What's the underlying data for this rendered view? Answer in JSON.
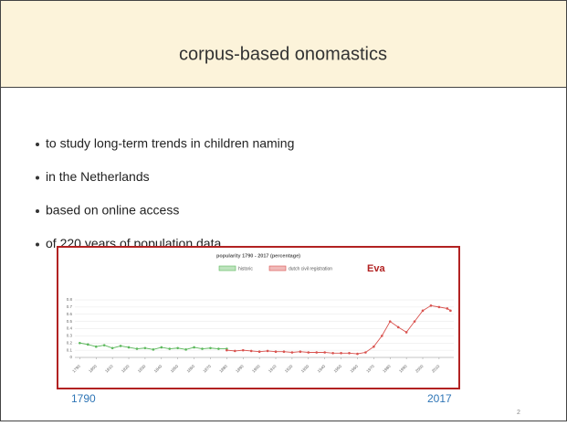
{
  "title": "corpus-based onomastics",
  "bullets": [
    "to study long-term trends in children naming",
    "in the Netherlands",
    "based on online access",
    "of 220 years of population data"
  ],
  "chart_data": {
    "type": "line",
    "title": "popularity 1790 - 2017 (percentage)",
    "annotation": "Eva",
    "series": [
      {
        "name": "historic",
        "color": "#5cb85c",
        "x": [
          1790,
          1795,
          1800,
          1805,
          1810,
          1815,
          1820,
          1825,
          1830,
          1835,
          1840,
          1845,
          1850,
          1855,
          1860,
          1865,
          1870,
          1875,
          1880
        ],
        "values": [
          0.2,
          0.18,
          0.15,
          0.17,
          0.13,
          0.16,
          0.14,
          0.12,
          0.13,
          0.11,
          0.14,
          0.12,
          0.13,
          0.11,
          0.14,
          0.12,
          0.13,
          0.12,
          0.12
        ]
      },
      {
        "name": "dutch civil registration",
        "color": "#d9534f",
        "x": [
          1880,
          1885,
          1890,
          1895,
          1900,
          1905,
          1910,
          1915,
          1920,
          1925,
          1930,
          1935,
          1940,
          1945,
          1950,
          1955,
          1960,
          1965,
          1970,
          1975,
          1980,
          1985,
          1990,
          1995,
          2000,
          2005,
          2010,
          2015,
          2017
        ],
        "values": [
          0.1,
          0.09,
          0.1,
          0.09,
          0.08,
          0.09,
          0.08,
          0.08,
          0.07,
          0.08,
          0.07,
          0.07,
          0.07,
          0.06,
          0.06,
          0.06,
          0.05,
          0.07,
          0.15,
          0.3,
          0.5,
          0.42,
          0.35,
          0.5,
          0.65,
          0.72,
          0.7,
          0.68,
          0.65
        ]
      }
    ],
    "xlim": [
      1787,
      2019
    ],
    "xticks": [
      1790,
      1800,
      1810,
      1820,
      1830,
      1840,
      1850,
      1860,
      1870,
      1880,
      1890,
      1900,
      1910,
      1920,
      1930,
      1940,
      1950,
      1960,
      1970,
      1980,
      1990,
      2000,
      2010
    ],
    "ylim": [
      0,
      0.8
    ],
    "yticks": [
      0,
      0.1,
      0.2,
      0.3,
      0.4,
      0.5,
      0.6,
      0.7,
      0.8
    ],
    "grid": true
  },
  "range_labels": [
    "1790",
    "2017"
  ],
  "page_number": "2"
}
